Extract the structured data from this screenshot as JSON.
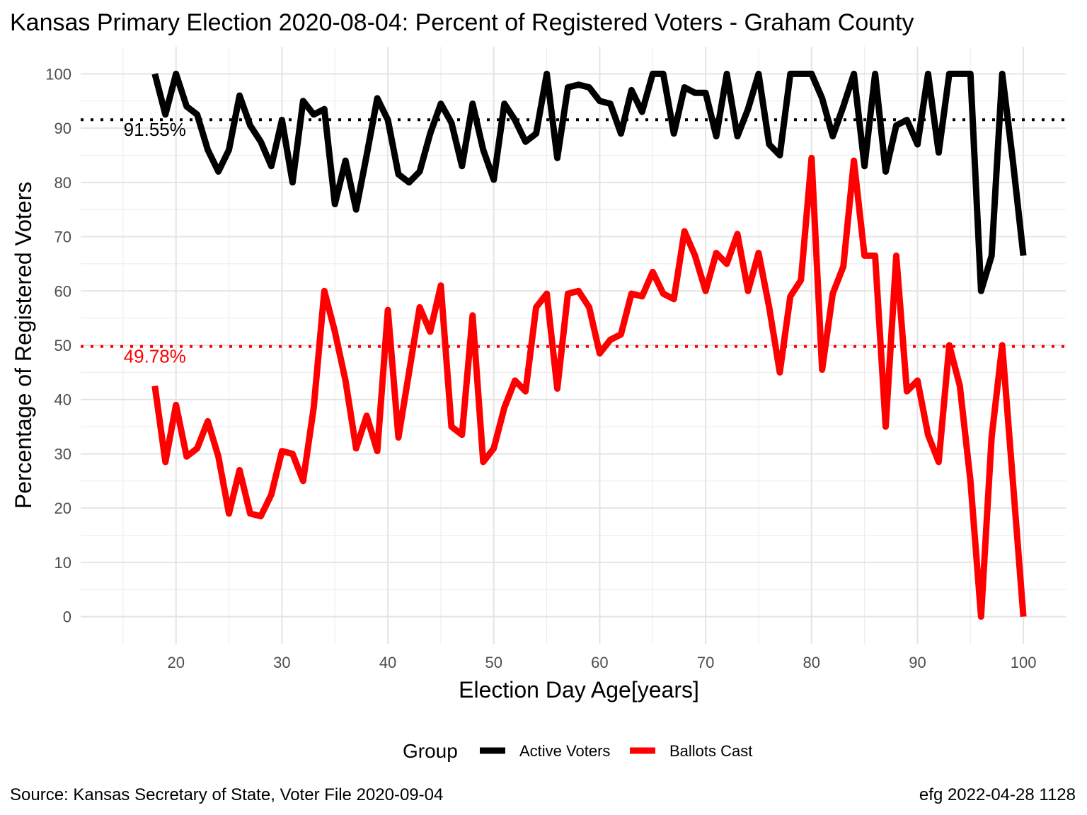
{
  "chart_data": {
    "type": "line",
    "title": "Kansas Primary Election 2020-08-04:  Percent of Registered Voters - Graham County",
    "xlabel": "Election Day Age[years]",
    "ylabel": "Percentage of Registered Voters",
    "xlim": [
      11,
      104
    ],
    "ylim": [
      -5,
      105
    ],
    "xticks": [
      20,
      30,
      40,
      50,
      60,
      70,
      80,
      90,
      100
    ],
    "yticks": [
      0,
      10,
      20,
      30,
      40,
      50,
      60,
      70,
      80,
      90,
      100
    ],
    "grid": true,
    "legend": {
      "title": "Group",
      "position": "bottom"
    },
    "x": [
      18,
      19,
      20,
      21,
      22,
      23,
      24,
      25,
      26,
      27,
      28,
      29,
      30,
      31,
      32,
      33,
      34,
      35,
      36,
      37,
      38,
      39,
      40,
      41,
      42,
      43,
      44,
      45,
      46,
      47,
      48,
      49,
      50,
      51,
      52,
      53,
      54,
      55,
      56,
      57,
      58,
      59,
      60,
      61,
      62,
      63,
      64,
      65,
      66,
      67,
      68,
      69,
      70,
      71,
      72,
      73,
      74,
      75,
      76,
      77,
      78,
      79,
      80,
      81,
      82,
      83,
      84,
      85,
      86,
      87,
      88,
      89,
      90,
      91,
      92,
      93,
      94,
      95,
      96,
      97,
      98,
      99,
      100
    ],
    "series": [
      {
        "name": "Active Voters",
        "color": "#000000",
        "values": [
          100,
          92.5,
          100,
          94,
          92.5,
          86,
          82,
          86,
          96,
          90.5,
          87.5,
          83,
          91.5,
          80,
          95,
          92.5,
          93.5,
          76,
          84,
          75,
          85,
          95.5,
          91.5,
          81.5,
          80,
          82,
          89,
          94.5,
          91,
          83,
          94.5,
          86,
          80.5,
          94.5,
          91.5,
          87.5,
          89,
          100,
          84.5,
          97.5,
          98,
          97.5,
          95,
          94.5,
          89,
          97,
          93,
          100,
          100,
          89,
          97.5,
          96.5,
          96.5,
          88.5,
          100,
          88.5,
          93.5,
          100,
          87,
          85,
          100,
          100,
          100,
          95.5,
          88.5,
          94,
          100,
          83,
          100,
          82,
          90.5,
          91.5,
          87,
          100,
          85.5,
          100,
          100,
          100,
          60,
          66.5,
          100,
          84,
          66.5
        ]
      },
      {
        "name": "Ballots Cast",
        "color": "#ff0000",
        "values": [
          42.5,
          28.5,
          39,
          29.5,
          31,
          36,
          29.5,
          19,
          27,
          19,
          18.5,
          22.5,
          30.5,
          30,
          25,
          38.5,
          60,
          52.5,
          43.5,
          31,
          37,
          30.5,
          56.5,
          33,
          45,
          57,
          52.5,
          61,
          35,
          33.5,
          55.5,
          28.5,
          31,
          38.5,
          43.5,
          41.5,
          57,
          59.5,
          42,
          59.5,
          60,
          57,
          48.5,
          51,
          52,
          59.5,
          59,
          63.5,
          59.5,
          58.5,
          71,
          66.5,
          60,
          67,
          65,
          70.5,
          60,
          67,
          57,
          45,
          59,
          62,
          84.5,
          45.5,
          59.5,
          64.5,
          84,
          66.5,
          66.5,
          35,
          66.5,
          41.5,
          43.5,
          33.5,
          28.5,
          50,
          42.5,
          25,
          0,
          33,
          50,
          25,
          0
        ]
      }
    ],
    "reference_lines": [
      {
        "series": "Active Voters",
        "value": 91.55,
        "label": "91.55%",
        "color": "#000000"
      },
      {
        "series": "Ballots Cast",
        "value": 49.78,
        "label": "49.78%",
        "color": "#ff0000"
      }
    ]
  },
  "caption": {
    "source": "Source:  Kansas Secretary of State, Voter File  2020-09-04",
    "stamp": "efg 2022-04-28 1128"
  }
}
